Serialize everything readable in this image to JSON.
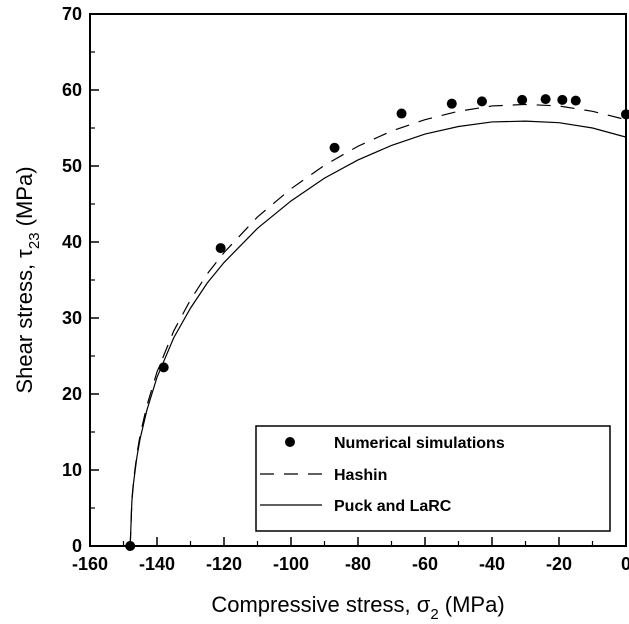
{
  "chart_data": {
    "type": "scatter",
    "xlabel": {
      "prefix": "Compressive stress, ",
      "symbol": "σ",
      "sub": "2",
      "suffix": " (MPa)"
    },
    "ylabel": {
      "prefix": "Shear stress, ",
      "symbol": "τ",
      "sub": "23",
      "suffix": " (MPa)"
    },
    "xlim": [
      -160,
      0
    ],
    "ylim": [
      0,
      70
    ],
    "xticks": [
      -160,
      -140,
      -120,
      -100,
      -80,
      -60,
      -40,
      -20,
      0
    ],
    "yticks": [
      0,
      10,
      20,
      30,
      40,
      50,
      60,
      70
    ],
    "grid": false,
    "legend_position": "bottom-right",
    "series": [
      {
        "name": "Numerical simulations",
        "style": "markers",
        "color": "#000000",
        "x": [
          -148,
          -138,
          -121,
          -87,
          -67,
          -52,
          -43,
          -31,
          -24,
          -19,
          -15,
          0
        ],
        "y": [
          0,
          23.5,
          39.2,
          52.4,
          56.9,
          58.2,
          58.5,
          58.7,
          58.8,
          58.7,
          58.6,
          56.8
        ]
      },
      {
        "name": "Hashin",
        "style": "dashed",
        "color": "#000000",
        "x": [
          -148,
          -147.5,
          -147,
          -146,
          -145,
          -143,
          -140,
          -135,
          -130,
          -125,
          -120,
          -110,
          -100,
          -90,
          -80,
          -70,
          -60,
          -50,
          -40,
          -30,
          -20,
          -10,
          0
        ],
        "y": [
          0,
          6.1,
          8.6,
          12.1,
          14.7,
          18.5,
          22.9,
          28.3,
          32.4,
          35.8,
          38.6,
          43.3,
          47.0,
          50.1,
          52.6,
          54.6,
          56.1,
          57.2,
          57.9,
          58.1,
          57.9,
          57.2,
          56.1
        ]
      },
      {
        "name": "Puck and LaRC",
        "style": "solid",
        "color": "#000000",
        "x": [
          -148,
          -147.5,
          -147,
          -146,
          -145,
          -143,
          -140,
          -135,
          -130,
          -125,
          -120,
          -110,
          -100,
          -90,
          -80,
          -70,
          -60,
          -50,
          -40,
          -30,
          -20,
          -10,
          0
        ],
        "y": [
          0,
          5.9,
          8.3,
          11.7,
          14.2,
          17.9,
          22.2,
          27.4,
          31.3,
          34.6,
          37.3,
          41.8,
          45.4,
          48.4,
          50.8,
          52.7,
          54.2,
          55.2,
          55.8,
          55.9,
          55.7,
          55.0,
          53.8
        ]
      }
    ]
  }
}
